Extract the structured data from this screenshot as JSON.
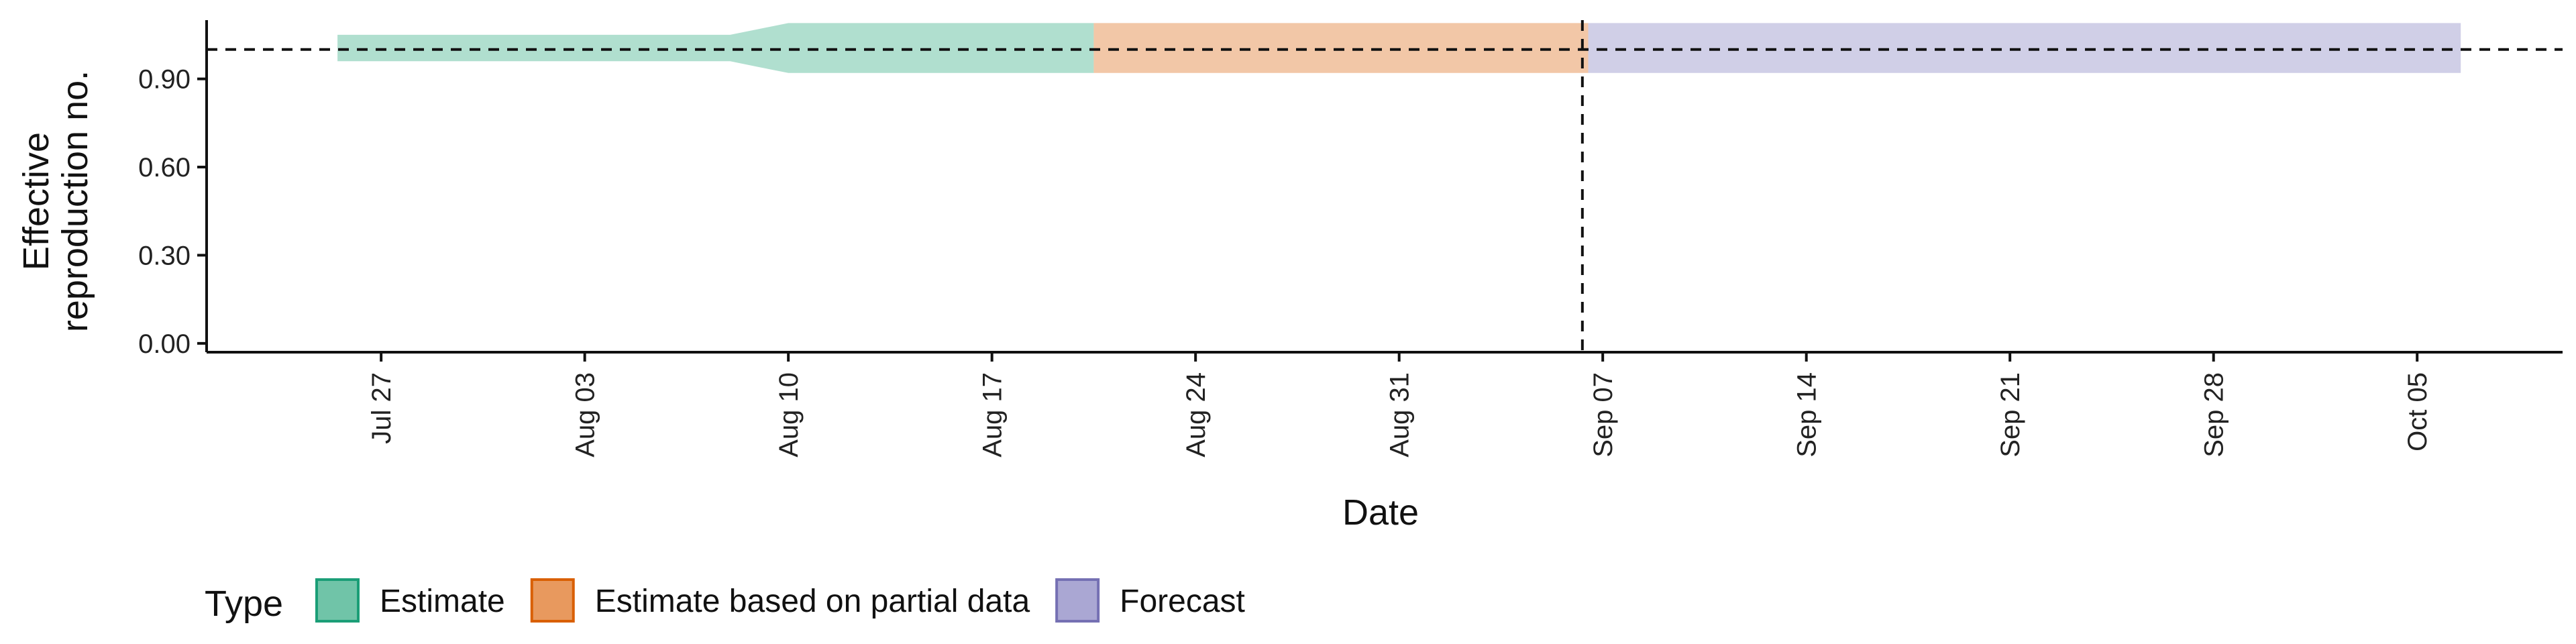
{
  "chart_data": {
    "type": "area",
    "xlabel": "Date",
    "ylabel_lines": [
      "Effective",
      "reproduction no."
    ],
    "x_range": [
      "2021-07-21",
      "2021-10-10"
    ],
    "ylim": [
      -0.03,
      1.1
    ],
    "y_ticks": [
      0.0,
      0.3,
      0.6,
      0.9
    ],
    "y_tick_labels": [
      "0.00",
      "0.30",
      "0.60",
      "0.90"
    ],
    "x_ticks": [
      "2021-07-27",
      "2021-08-03",
      "2021-08-10",
      "2021-08-17",
      "2021-08-24",
      "2021-08-31",
      "2021-09-07",
      "2021-09-14",
      "2021-09-21",
      "2021-09-28",
      "2021-10-05"
    ],
    "x_tick_labels": [
      "Jul 27",
      "Aug 03",
      "Aug 10",
      "Aug 17",
      "Aug 24",
      "Aug 31",
      "Sep 07",
      "Sep 14",
      "Sep 21",
      "Sep 28",
      "Oct 05"
    ],
    "reference_hline": 1.0,
    "reference_vline": "2021-09-06",
    "grid": false,
    "legend_position": "bottom",
    "legend_title": "Type",
    "series": [
      {
        "name": "Estimate",
        "color": "#1b9e77",
        "fill": "#70c4a8",
        "x": [
          "2021-07-26",
          "2021-08-08",
          "2021-08-09",
          "2021-08-10",
          "2021-08-20"
        ],
        "median": [
          1.0,
          1.0,
          1.0,
          1.0,
          1.0
        ],
        "lower": [
          0.96,
          0.96,
          0.94,
          0.92,
          0.92
        ],
        "upper": [
          1.05,
          1.05,
          1.07,
          1.09,
          1.09
        ]
      },
      {
        "name": "Estimate based on partial data",
        "color": "#d95f02",
        "fill": "#e8995e",
        "x": [
          "2021-08-21",
          "2021-09-06"
        ],
        "median": [
          1.0,
          1.0
        ],
        "lower": [
          0.92,
          0.92
        ],
        "upper": [
          1.09,
          1.09
        ]
      },
      {
        "name": "Forecast",
        "color": "#7570b3",
        "fill": "#aaa7d3",
        "x": [
          "2021-09-07",
          "2021-10-06"
        ],
        "median": [
          1.0,
          1.0
        ],
        "lower": [
          0.92,
          0.92
        ],
        "upper": [
          1.09,
          1.09
        ]
      }
    ]
  }
}
